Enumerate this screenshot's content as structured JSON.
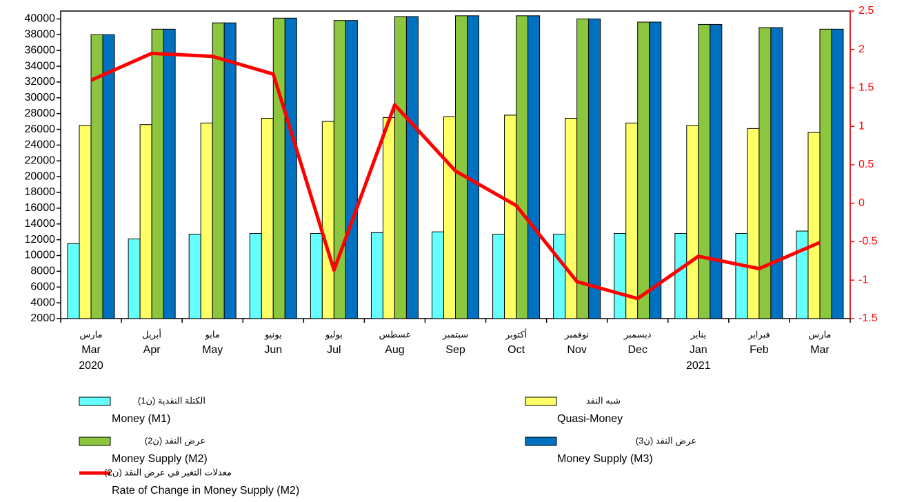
{
  "chart_data": {
    "type": "bar",
    "categories": [
      "Mar",
      "Apr",
      "May",
      "Jun",
      "Jul",
      "Aug",
      "Sep",
      "Oct",
      "Nov",
      "Dec",
      "Jan",
      "Feb",
      "Mar"
    ],
    "categories_ar": [
      "مارس",
      "أبريل",
      "مايو",
      "يونيو",
      "يوليو",
      "غسطس",
      "سبتمبر",
      "أكتوبر",
      "نوفمبر",
      "ديسمبر",
      "يناير",
      "فبراير",
      "مارس"
    ],
    "years": [
      "2020",
      null,
      null,
      null,
      null,
      null,
      null,
      null,
      null,
      null,
      "2021",
      null,
      null
    ],
    "series": [
      {
        "name": "Money (M1)",
        "name_ar": "الكتلة النقدية (ن1)",
        "type": "bar",
        "color": "#66ffff",
        "values": [
          11500,
          12100,
          12700,
          12800,
          12800,
          12900,
          13000,
          12700,
          12700,
          12800,
          12800,
          12800,
          13100
        ]
      },
      {
        "name": "Quasi-Money",
        "name_ar": "شبه النقد",
        "type": "bar",
        "color": "#ffff66",
        "values": [
          26500,
          26600,
          26800,
          27400,
          27000,
          27500,
          27600,
          27800,
          27400,
          26800,
          26500,
          26100,
          25600
        ]
      },
      {
        "name": "Money Supply (M2)",
        "name_ar": "عرض النقد (ن2)",
        "type": "bar",
        "color": "#8cc63f",
        "values": [
          38000,
          38700,
          39500,
          40100,
          39800,
          40300,
          40400,
          40400,
          40000,
          39600,
          39300,
          38900,
          38700
        ]
      },
      {
        "name": "Money Supply (M3)",
        "name_ar": "عرض النقد (ن3)",
        "type": "bar",
        "color": "#0070c0",
        "values": [
          38000,
          38700,
          39500,
          40100,
          39800,
          40300,
          40400,
          40400,
          40000,
          39600,
          39300,
          38900,
          38700
        ]
      },
      {
        "name": "Rate of Change in Money Supply (M2)",
        "name_ar": "معدلات التغير في عرض النقد (ن2)",
        "type": "line",
        "axis": "y2",
        "color": "#ff0000",
        "values": [
          1.6,
          1.95,
          1.91,
          1.68,
          -0.87,
          1.28,
          0.42,
          -0.03,
          -1.02,
          -1.24,
          -0.69,
          -0.85,
          -0.51
        ]
      }
    ],
    "ylim": [
      2000,
      41000
    ],
    "yticks": [
      2000,
      4000,
      6000,
      8000,
      10000,
      12000,
      14000,
      16000,
      18000,
      20000,
      22000,
      24000,
      26000,
      28000,
      30000,
      32000,
      34000,
      36000,
      38000,
      40000
    ],
    "y2lim": [
      -1.5,
      2.5
    ],
    "y2ticks": [
      -1.5,
      -1,
      -0.5,
      0,
      0.5,
      1,
      1.5,
      2,
      2.5
    ],
    "y2color": "#ff0000",
    "legend": "bottom"
  }
}
